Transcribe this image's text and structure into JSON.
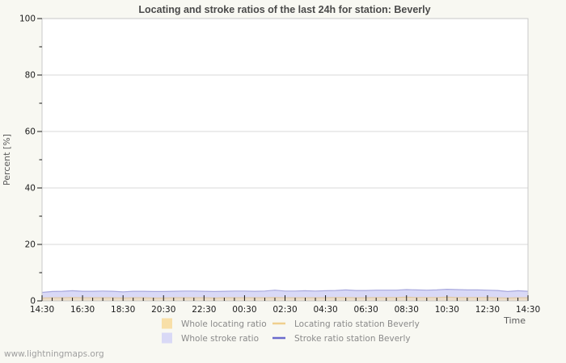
{
  "page": {
    "watermark": "www.lightningmaps.org"
  },
  "chart_data": {
    "type": "area",
    "title": "Locating and stroke ratios of the last 24h for station: Beverly",
    "xlabel": "Time",
    "ylabel": "Percent  [%]",
    "ylim": [
      0,
      100
    ],
    "ytick_major": [
      0,
      20,
      40,
      60,
      80,
      100
    ],
    "ytick_minor": [
      10,
      30,
      50,
      70,
      90
    ],
    "x_major_labels": [
      "14:30",
      "16:30",
      "18:30",
      "20:30",
      "22:30",
      "00:30",
      "02:30",
      "04:30",
      "06:30",
      "08:30",
      "10:30",
      "12:30",
      "14:30"
    ],
    "x_minor_per_major": 4,
    "grid": "horizontal-major",
    "legend_position": "bottom-center",
    "colors": {
      "page_background": "#f8f8f2",
      "plot_background": "#ffffff",
      "border": "#c9c9c9",
      "grid": "#d9d9d9",
      "tick": "#1a1a1a"
    },
    "series": [
      {
        "name": "Whole locating ratio",
        "kind": "area",
        "color": "#f8dfa8",
        "fill_opacity": 0.6,
        "values": [
          0.8,
          0.9,
          0.9,
          1.0,
          0.9,
          0.9,
          0.9,
          0.9,
          0.8,
          0.9,
          0.9,
          0.8,
          0.8,
          0.9,
          0.9,
          0.9,
          0.9,
          0.8,
          0.9,
          0.9,
          0.9,
          0.9,
          0.9,
          1.0,
          0.9,
          0.9,
          0.9,
          0.9,
          0.9,
          1.0,
          1.0,
          0.9,
          0.9,
          1.0,
          1.0,
          1.0,
          1.1,
          1.0,
          1.0,
          1.0,
          1.1,
          1.0,
          1.0,
          1.0,
          1.0,
          0.9,
          0.8,
          0.9,
          0.9
        ]
      },
      {
        "name": "Whole stroke ratio",
        "kind": "area",
        "color": "#d9d9f6",
        "fill_opacity": 1,
        "values": [
          3.0,
          3.3,
          3.4,
          3.6,
          3.4,
          3.4,
          3.5,
          3.4,
          3.2,
          3.4,
          3.4,
          3.3,
          3.3,
          3.4,
          3.5,
          3.5,
          3.4,
          3.3,
          3.4,
          3.5,
          3.5,
          3.4,
          3.5,
          3.8,
          3.5,
          3.5,
          3.6,
          3.5,
          3.6,
          3.7,
          3.9,
          3.7,
          3.7,
          3.8,
          3.8,
          3.8,
          4.0,
          3.9,
          3.8,
          3.9,
          4.1,
          4.0,
          3.9,
          3.9,
          3.8,
          3.7,
          3.3,
          3.6,
          3.4
        ]
      },
      {
        "name": "Locating ratio station Beverly",
        "kind": "line",
        "color": "#f0cf8e",
        "plot_color": "#e2c9a0",
        "values": [
          1.0,
          1.1,
          1.1,
          1.2,
          1.1,
          1.1,
          1.1,
          1.1,
          1.0,
          1.1,
          1.1,
          1.0,
          1.0,
          1.1,
          1.1,
          1.1,
          1.1,
          1.0,
          1.1,
          1.1,
          1.1,
          1.1,
          1.1,
          1.2,
          1.1,
          1.1,
          1.1,
          1.1,
          1.1,
          1.2,
          1.2,
          1.1,
          1.1,
          1.2,
          1.2,
          1.2,
          1.3,
          1.2,
          1.2,
          1.2,
          1.3,
          1.2,
          1.2,
          1.2,
          1.2,
          1.1,
          1.0,
          1.1,
          1.1
        ]
      },
      {
        "name": "Stroke ratio station Beverly",
        "kind": "line",
        "color": "#6a6acc",
        "plot_color": "#a8a8de",
        "values": [
          3.0,
          3.3,
          3.4,
          3.6,
          3.4,
          3.4,
          3.5,
          3.4,
          3.2,
          3.4,
          3.4,
          3.3,
          3.3,
          3.4,
          3.5,
          3.5,
          3.4,
          3.3,
          3.4,
          3.5,
          3.5,
          3.4,
          3.5,
          3.8,
          3.5,
          3.5,
          3.6,
          3.5,
          3.6,
          3.7,
          3.9,
          3.7,
          3.7,
          3.8,
          3.8,
          3.8,
          4.0,
          3.9,
          3.8,
          3.9,
          4.1,
          4.0,
          3.9,
          3.9,
          3.8,
          3.7,
          3.3,
          3.6,
          3.4
        ]
      }
    ]
  }
}
